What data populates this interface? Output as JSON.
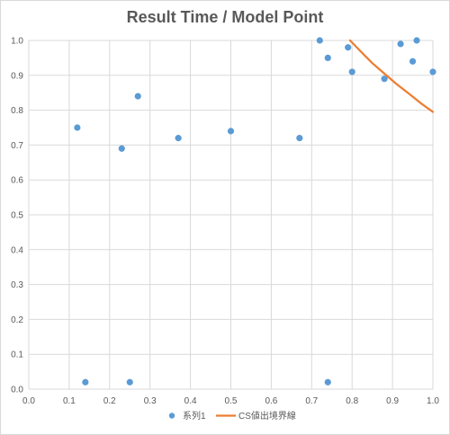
{
  "chart_data": {
    "type": "scatter",
    "title": "Result Time / Model Point",
    "xlim": [
      0,
      1
    ],
    "ylim": [
      0,
      1
    ],
    "x_ticks": [
      "0.0",
      "0.1",
      "0.2",
      "0.3",
      "0.4",
      "0.5",
      "0.6",
      "0.7",
      "0.8",
      "0.9",
      "1.0"
    ],
    "y_ticks": [
      "0.0",
      "0.1",
      "0.2",
      "0.3",
      "0.4",
      "0.5",
      "0.6",
      "0.7",
      "0.8",
      "0.9",
      "1.0"
    ],
    "grid": true,
    "legend_position": "bottom",
    "series": [
      {
        "name": "系列1",
        "kind": "scatter",
        "color": "#5B9BD5",
        "points": [
          {
            "x": 0.12,
            "y": 0.75
          },
          {
            "x": 0.14,
            "y": 0.02
          },
          {
            "x": 0.23,
            "y": 0.69
          },
          {
            "x": 0.25,
            "y": 0.02
          },
          {
            "x": 0.27,
            "y": 0.84
          },
          {
            "x": 0.37,
            "y": 0.72
          },
          {
            "x": 0.5,
            "y": 0.74
          },
          {
            "x": 0.67,
            "y": 0.72
          },
          {
            "x": 0.72,
            "y": 1.0
          },
          {
            "x": 0.74,
            "y": 0.95
          },
          {
            "x": 0.74,
            "y": 0.02
          },
          {
            "x": 0.79,
            "y": 0.98
          },
          {
            "x": 0.8,
            "y": 0.91
          },
          {
            "x": 0.88,
            "y": 0.89
          },
          {
            "x": 0.92,
            "y": 0.99
          },
          {
            "x": 0.95,
            "y": 0.94
          },
          {
            "x": 0.96,
            "y": 1.0
          },
          {
            "x": 1.0,
            "y": 0.91
          }
        ]
      },
      {
        "name": "CS値出境界線",
        "kind": "line",
        "color": "#ED7D31",
        "points": [
          {
            "x": 0.795,
            "y": 1.0
          },
          {
            "x": 0.82,
            "y": 0.97
          },
          {
            "x": 0.85,
            "y": 0.935
          },
          {
            "x": 0.88,
            "y": 0.905
          },
          {
            "x": 0.91,
            "y": 0.875
          },
          {
            "x": 0.94,
            "y": 0.848
          },
          {
            "x": 0.97,
            "y": 0.82
          },
          {
            "x": 1.0,
            "y": 0.795
          }
        ]
      }
    ]
  }
}
